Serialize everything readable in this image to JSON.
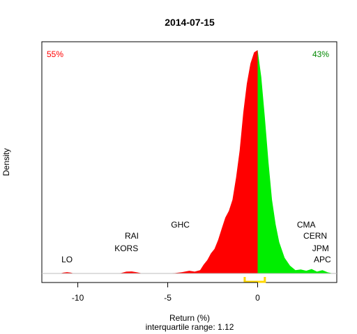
{
  "chart_data": {
    "type": "area",
    "title": "2014-07-15",
    "xlabel": "Return (%)",
    "ylabel": "Density",
    "subtitle": "interquartile range: 1.12",
    "xlim": [
      -12,
      4.4
    ],
    "ylim": [
      0,
      1
    ],
    "x_ticks": [
      -10,
      -5,
      0
    ],
    "x_tick_labels": [
      "-10",
      "-5",
      "0"
    ],
    "pct_negative": "55%",
    "pct_positive": "43%",
    "colors": {
      "negative": "#ff0000",
      "positive": "#00ee00",
      "iqr": "#ffd700",
      "baseline": "#bebebe"
    },
    "iqr": [
      -0.72,
      0.4
    ],
    "density": {
      "x": [
        -11.0,
        -10.8,
        -10.6,
        -10.4,
        -10.2,
        -10.0,
        -9.0,
        -8.0,
        -7.6,
        -7.3,
        -7.0,
        -6.7,
        -6.4,
        -5.5,
        -4.6,
        -4.2,
        -3.8,
        -3.5,
        -3.2,
        -3.0,
        -2.8,
        -2.6,
        -2.4,
        -2.2,
        -2.0,
        -1.8,
        -1.6,
        -1.4,
        -1.2,
        -1.0,
        -0.8,
        -0.6,
        -0.4,
        -0.2,
        0.0,
        0.2,
        0.4,
        0.6,
        0.8,
        1.0,
        1.2,
        1.5,
        1.8,
        2.1,
        2.4,
        2.7,
        3.0,
        3.3,
        3.6,
        3.9,
        4.2
      ],
      "y": [
        0.0,
        0.004,
        0.006,
        0.004,
        0.0,
        0.0,
        0.0,
        0.0,
        0.002,
        0.008,
        0.009,
        0.005,
        0.0,
        0.0,
        0.002,
        0.006,
        0.012,
        0.008,
        0.015,
        0.04,
        0.06,
        0.09,
        0.11,
        0.15,
        0.2,
        0.25,
        0.28,
        0.33,
        0.43,
        0.55,
        0.72,
        0.85,
        0.94,
        0.99,
        1.0,
        0.88,
        0.7,
        0.5,
        0.33,
        0.22,
        0.14,
        0.07,
        0.035,
        0.015,
        0.018,
        0.012,
        0.02,
        0.008,
        0.015,
        0.005,
        0.0
      ]
    },
    "annotations": [
      {
        "label": "LO",
        "x": -10.6,
        "y": 0.05
      },
      {
        "label": "KORS",
        "x": -7.3,
        "y": 0.1
      },
      {
        "label": "RAI",
        "x": -7.0,
        "y": 0.155
      },
      {
        "label": "GHC",
        "x": -4.3,
        "y": 0.205
      },
      {
        "label": "CMA",
        "x": 2.7,
        "y": 0.205
      },
      {
        "label": "CERN",
        "x": 3.2,
        "y": 0.155
      },
      {
        "label": "JPM",
        "x": 3.5,
        "y": 0.1
      },
      {
        "label": "APC",
        "x": 3.6,
        "y": 0.05
      }
    ]
  }
}
